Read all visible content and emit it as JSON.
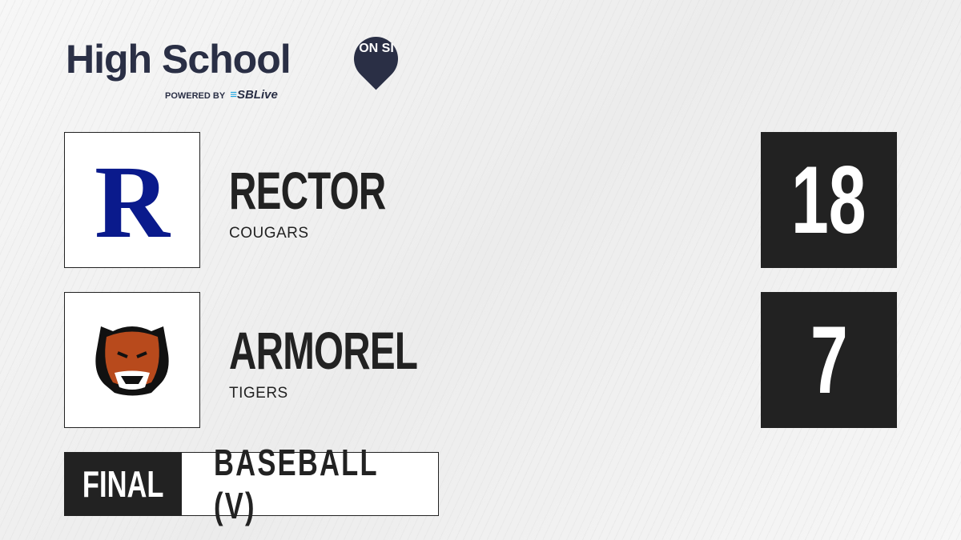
{
  "brand": {
    "title": "High School",
    "badge": "ON SI",
    "powered_by": "POWERED BY",
    "partner": "SBLive",
    "partner_accent": "#1fa6e0",
    "color": "#2a2f45"
  },
  "teams": [
    {
      "name": "RECTOR",
      "mascot": "COUGARS",
      "score": "18",
      "logo_icon": "rector-r-logo",
      "logo_color": "#0a1a8c"
    },
    {
      "name": "ARMOREL",
      "mascot": "TIGERS",
      "score": "7",
      "logo_icon": "tiger-head-logo",
      "logo_color": "#b84a1c"
    }
  ],
  "status": {
    "label": "FINAL",
    "sport": "BASEBALL (V)"
  }
}
